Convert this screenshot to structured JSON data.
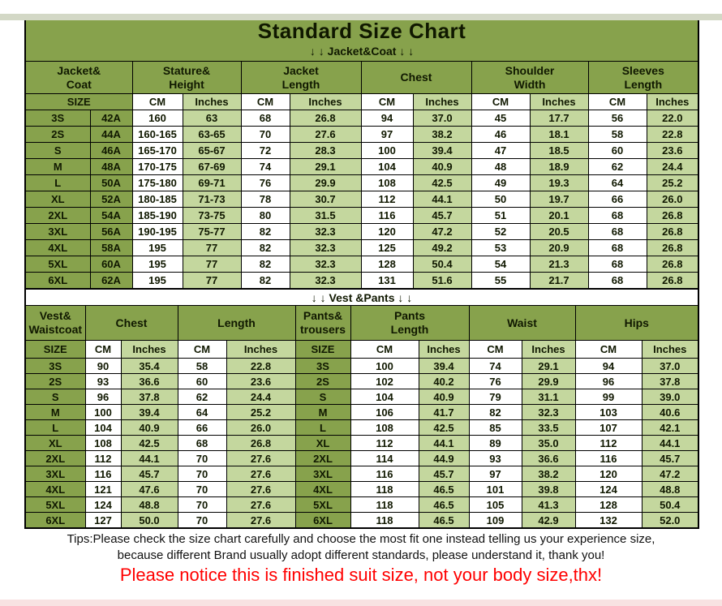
{
  "page": {
    "title": "Standard Size Chart",
    "tips_line1": "Tips:Please check the size chart carefully and choose the most fit one instead telling us your experience size,",
    "tips_line2": "because different Brand usually adopt different standards, please understand it, thank you!",
    "red_notice": "Please notice this is finished suit size, not your body size,thx!"
  },
  "colors": {
    "olive_green": "#87A24C",
    "light_green": "#C4D79E",
    "cell_white": "#FFFFFF",
    "border_black": "#000000",
    "notice_red": "#FF0000",
    "top_strip": "#D3D8C6",
    "bottom_strip": "#F8E2E2"
  },
  "chart_data": [
    {
      "type": "table",
      "title": "↓ ↓  Jacket&Coat ↓ ↓",
      "column_groups": [
        "Jacket&\nCoat",
        "Stature&\nHeight",
        "Jacket\nLength",
        "Chest",
        "Shoulder\nWidth",
        "Sleeves\nLength"
      ],
      "subheader": [
        "SIZE",
        "CM",
        "Inches",
        "CM",
        "Inches",
        "CM",
        "Inches",
        "CM",
        "Inches",
        "CM",
        "Inches"
      ],
      "rows": [
        [
          "3S",
          "42A",
          "160",
          "63",
          "68",
          "26.8",
          "94",
          "37.0",
          "45",
          "17.7",
          "56",
          "22.0"
        ],
        [
          "2S",
          "44A",
          "160-165",
          "63-65",
          "70",
          "27.6",
          "97",
          "38.2",
          "46",
          "18.1",
          "58",
          "22.8"
        ],
        [
          "S",
          "46A",
          "165-170",
          "65-67",
          "72",
          "28.3",
          "100",
          "39.4",
          "47",
          "18.5",
          "60",
          "23.6"
        ],
        [
          "M",
          "48A",
          "170-175",
          "67-69",
          "74",
          "29.1",
          "104",
          "40.9",
          "48",
          "18.9",
          "62",
          "24.4"
        ],
        [
          "L",
          "50A",
          "175-180",
          "69-71",
          "76",
          "29.9",
          "108",
          "42.5",
          "49",
          "19.3",
          "64",
          "25.2"
        ],
        [
          "XL",
          "52A",
          "180-185",
          "71-73",
          "78",
          "30.7",
          "112",
          "44.1",
          "50",
          "19.7",
          "66",
          "26.0"
        ],
        [
          "2XL",
          "54A",
          "185-190",
          "73-75",
          "80",
          "31.5",
          "116",
          "45.7",
          "51",
          "20.1",
          "68",
          "26.8"
        ],
        [
          "3XL",
          "56A",
          "190-195",
          "75-77",
          "82",
          "32.3",
          "120",
          "47.2",
          "52",
          "20.5",
          "68",
          "26.8"
        ],
        [
          "4XL",
          "58A",
          "195",
          "77",
          "82",
          "32.3",
          "125",
          "49.2",
          "53",
          "20.9",
          "68",
          "26.8"
        ],
        [
          "5XL",
          "60A",
          "195",
          "77",
          "82",
          "32.3",
          "128",
          "50.4",
          "54",
          "21.3",
          "68",
          "26.8"
        ],
        [
          "6XL",
          "62A",
          "195",
          "77",
          "82",
          "32.3",
          "131",
          "51.6",
          "55",
          "21.7",
          "68",
          "26.8"
        ]
      ]
    },
    {
      "type": "table",
      "title": "↓ ↓  Vest &Pants ↓ ↓",
      "column_groups": [
        "Vest&\nWaistcoat",
        "Chest",
        "Length",
        "Pants&\ntrousers",
        "Pants\nLength",
        "Waist",
        "Hips"
      ],
      "subheader": [
        "SIZE",
        "CM",
        "Inches",
        "CM",
        "Inches",
        "SIZE",
        "CM",
        "Inches",
        "CM",
        "Inches",
        "CM",
        "Inches"
      ],
      "rows": [
        [
          "3S",
          "90",
          "35.4",
          "58",
          "22.8",
          "3S",
          "100",
          "39.4",
          "74",
          "29.1",
          "94",
          "37.0"
        ],
        [
          "2S",
          "93",
          "36.6",
          "60",
          "23.6",
          "2S",
          "102",
          "40.2",
          "76",
          "29.9",
          "96",
          "37.8"
        ],
        [
          "S",
          "96",
          "37.8",
          "62",
          "24.4",
          "S",
          "104",
          "40.9",
          "79",
          "31.1",
          "99",
          "39.0"
        ],
        [
          "M",
          "100",
          "39.4",
          "64",
          "25.2",
          "M",
          "106",
          "41.7",
          "82",
          "32.3",
          "103",
          "40.6"
        ],
        [
          "L",
          "104",
          "40.9",
          "66",
          "26.0",
          "L",
          "108",
          "42.5",
          "85",
          "33.5",
          "107",
          "42.1"
        ],
        [
          "XL",
          "108",
          "42.5",
          "68",
          "26.8",
          "XL",
          "112",
          "44.1",
          "89",
          "35.0",
          "112",
          "44.1"
        ],
        [
          "2XL",
          "112",
          "44.1",
          "70",
          "27.6",
          "2XL",
          "114",
          "44.9",
          "93",
          "36.6",
          "116",
          "45.7"
        ],
        [
          "3XL",
          "116",
          "45.7",
          "70",
          "27.6",
          "3XL",
          "116",
          "45.7",
          "97",
          "38.2",
          "120",
          "47.2"
        ],
        [
          "4XL",
          "121",
          "47.6",
          "70",
          "27.6",
          "4XL",
          "118",
          "46.5",
          "101",
          "39.8",
          "124",
          "48.8"
        ],
        [
          "5XL",
          "124",
          "48.8",
          "70",
          "27.6",
          "5XL",
          "118",
          "46.5",
          "105",
          "41.3",
          "128",
          "50.4"
        ],
        [
          "6XL",
          "127",
          "50.0",
          "70",
          "27.6",
          "6XL",
          "118",
          "46.5",
          "109",
          "42.9",
          "132",
          "52.0"
        ]
      ]
    }
  ]
}
